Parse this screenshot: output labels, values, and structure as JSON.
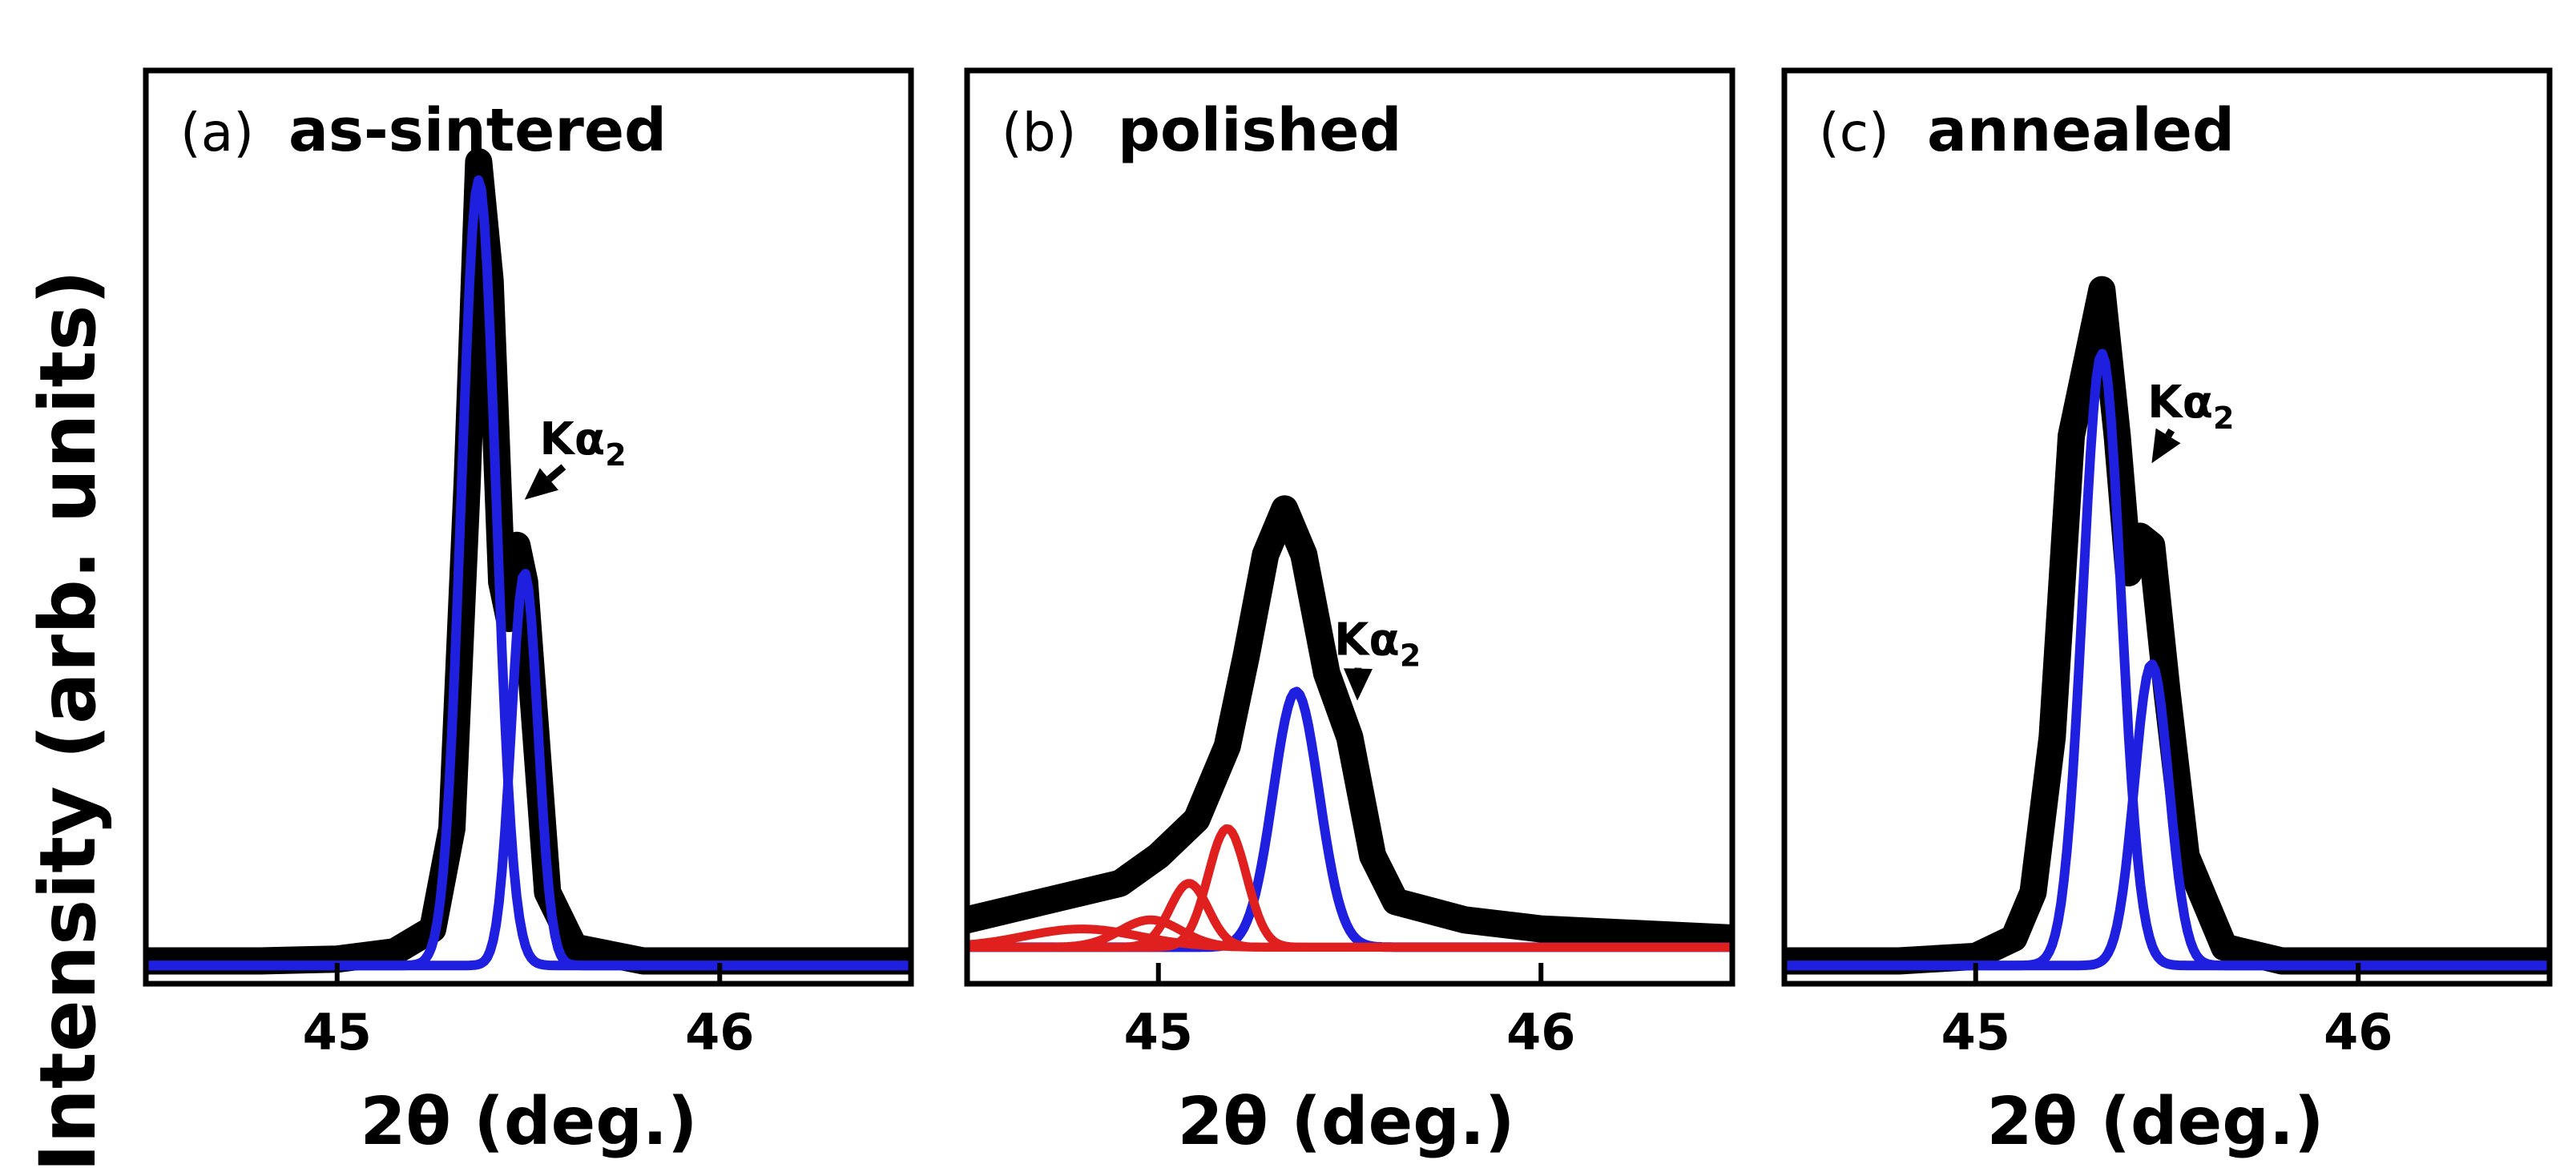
{
  "chart_data": {
    "type": "line",
    "y_axis_label": "Intensity (arb. units)",
    "colors": {
      "measured": "#000000",
      "fit_main": "#1f1fe0",
      "fit_extra": "#e0201f"
    },
    "panels": [
      {
        "tag": "(a)",
        "name": "as-sintered",
        "xlabel": "2θ (deg.)",
        "xlim": [
          44.5,
          46.5
        ],
        "ylim": [
          0,
          1
        ],
        "xticks": [
          45,
          46
        ],
        "tick_labels": [
          "45",
          "46"
        ],
        "annotation": {
          "text": "Kα",
          "subscript": "2",
          "x": 45.55,
          "y": 0.58,
          "arrow_to": [
            45.49,
            0.53
          ]
        },
        "series": [
          {
            "role": "measured",
            "points": [
              [
                44.5,
                0.025
              ],
              [
                44.8,
                0.025
              ],
              [
                45.0,
                0.027
              ],
              [
                45.15,
                0.035
              ],
              [
                45.25,
                0.06
              ],
              [
                45.3,
                0.17
              ],
              [
                45.34,
                0.55
              ],
              [
                45.37,
                0.9
              ],
              [
                45.4,
                0.77
              ],
              [
                45.43,
                0.44
              ],
              [
                45.45,
                0.4
              ],
              [
                45.47,
                0.48
              ],
              [
                45.49,
                0.44
              ],
              [
                45.52,
                0.27
              ],
              [
                45.55,
                0.1
              ],
              [
                45.62,
                0.04
              ],
              [
                45.8,
                0.025
              ],
              [
                46.2,
                0.025
              ],
              [
                46.5,
                0.025
              ]
            ]
          },
          {
            "role": "fit_main",
            "peak": {
              "center": 45.37,
              "height": 0.86,
              "width": 0.045,
              "baseline": 0.02
            }
          },
          {
            "role": "fit_main",
            "peak": {
              "center": 45.49,
              "height": 0.43,
              "width": 0.035,
              "baseline": 0.02
            }
          }
        ]
      },
      {
        "tag": "(b)",
        "name": "polished",
        "xlabel": "2θ (deg.)",
        "xlim": [
          44.5,
          46.5
        ],
        "ylim": [
          0,
          1
        ],
        "xticks": [
          45,
          46
        ],
        "tick_labels": [
          "45",
          "46"
        ],
        "annotation": {
          "text": "Kα",
          "subscript": "2",
          "x": 45.48,
          "y": 0.36,
          "arrow_to": [
            45.52,
            0.31
          ]
        },
        "series": [
          {
            "role": "measured",
            "points": [
              [
                44.5,
                0.07
              ],
              [
                44.7,
                0.09
              ],
              [
                44.9,
                0.11
              ],
              [
                45.0,
                0.14
              ],
              [
                45.1,
                0.18
              ],
              [
                45.18,
                0.26
              ],
              [
                45.23,
                0.36
              ],
              [
                45.28,
                0.47
              ],
              [
                45.33,
                0.52
              ],
              [
                45.38,
                0.47
              ],
              [
                45.44,
                0.34
              ],
              [
                45.5,
                0.27
              ],
              [
                45.56,
                0.14
              ],
              [
                45.62,
                0.09
              ],
              [
                45.8,
                0.07
              ],
              [
                46.0,
                0.06
              ],
              [
                46.5,
                0.05
              ]
            ]
          },
          {
            "role": "fit_main",
            "peak": {
              "center": 45.36,
              "height": 0.28,
              "width": 0.06,
              "baseline": 0.04
            }
          },
          {
            "role": "fit_extra",
            "peak": {
              "center": 45.18,
              "height": 0.13,
              "width": 0.05,
              "baseline": 0.04
            }
          },
          {
            "role": "fit_extra",
            "peak": {
              "center": 45.08,
              "height": 0.07,
              "width": 0.05,
              "baseline": 0.04
            }
          },
          {
            "role": "fit_extra",
            "peak": {
              "center": 44.98,
              "height": 0.03,
              "width": 0.08,
              "baseline": 0.04
            }
          },
          {
            "role": "fit_extra",
            "peak": {
              "center": 44.8,
              "height": 0.02,
              "width": 0.15,
              "baseline": 0.04
            }
          }
        ]
      },
      {
        "tag": "(c)",
        "name": "annealed",
        "xlabel": "2θ (deg.)",
        "xlim": [
          44.5,
          46.5
        ],
        "ylim": [
          0,
          1
        ],
        "xticks": [
          45,
          46
        ],
        "tick_labels": [
          "45",
          "46"
        ],
        "annotation": {
          "text": "Kα",
          "subscript": "2",
          "x": 45.47,
          "y": 0.62,
          "arrow_to": [
            45.46,
            0.57
          ]
        },
        "series": [
          {
            "role": "measured",
            "points": [
              [
                44.5,
                0.025
              ],
              [
                44.8,
                0.025
              ],
              [
                45.0,
                0.03
              ],
              [
                45.1,
                0.05
              ],
              [
                45.15,
                0.1
              ],
              [
                45.2,
                0.27
              ],
              [
                45.25,
                0.6
              ],
              [
                45.33,
                0.76
              ],
              [
                45.37,
                0.6
              ],
              [
                45.4,
                0.45
              ],
              [
                45.43,
                0.49
              ],
              [
                45.46,
                0.48
              ],
              [
                45.5,
                0.32
              ],
              [
                45.55,
                0.14
              ],
              [
                45.65,
                0.04
              ],
              [
                45.8,
                0.025
              ],
              [
                46.2,
                0.025
              ],
              [
                46.5,
                0.025
              ]
            ]
          },
          {
            "role": "fit_main",
            "peak": {
              "center": 45.33,
              "height": 0.67,
              "width": 0.05,
              "baseline": 0.02
            }
          },
          {
            "role": "fit_main",
            "peak": {
              "center": 45.46,
              "height": 0.33,
              "width": 0.045,
              "baseline": 0.02
            }
          }
        ]
      }
    ]
  }
}
